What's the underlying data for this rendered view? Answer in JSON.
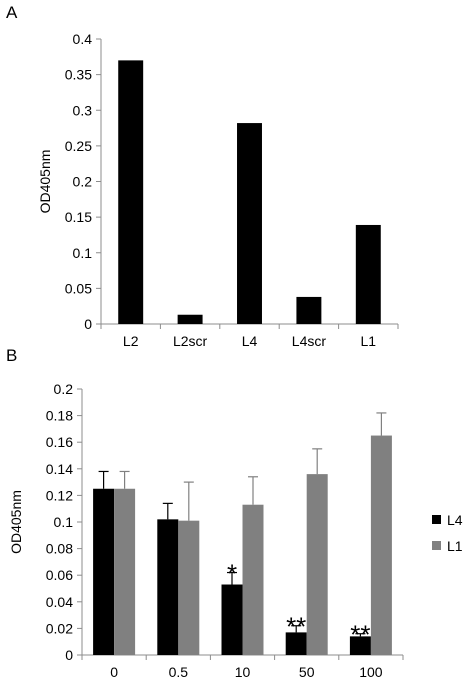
{
  "chart_data": [
    {
      "panel": "A",
      "type": "bar",
      "title": "",
      "xlabel": "",
      "ylabel": "OD405nm",
      "ylim": [
        0,
        0.4
      ],
      "yticks": [
        "0",
        "0.05",
        "0.1",
        "0.15",
        "0.2",
        "0.25",
        "0.3",
        "0.35",
        "0.4"
      ],
      "categories": [
        "L2",
        "L2scr",
        "L4",
        "L4scr",
        "L1"
      ],
      "values": [
        0.37,
        0.013,
        0.282,
        0.038,
        0.139
      ],
      "color": "#000000",
      "grid": false,
      "legend": "none"
    },
    {
      "panel": "B",
      "type": "bar",
      "title": "",
      "xlabel": "",
      "ylabel": "OD405nm",
      "ylim": [
        0,
        0.2
      ],
      "yticks": [
        "0",
        "0.02",
        "0.04",
        "0.06",
        "0.08",
        "0.1",
        "0.12",
        "0.14",
        "0.16",
        "0.18",
        "0.2"
      ],
      "categories": [
        "0",
        "0.5",
        "10",
        "50",
        "100"
      ],
      "series": [
        {
          "name": "L4",
          "color": "#000000",
          "values": [
            0.125,
            0.102,
            0.053,
            0.017,
            0.014
          ],
          "errors": [
            0.013,
            0.012,
            0.009,
            0.005,
            0.002
          ],
          "annotations": [
            "",
            "",
            "*",
            "**",
            "**"
          ]
        },
        {
          "name": "L1",
          "color": "#808080",
          "values": [
            0.125,
            0.101,
            0.113,
            0.136,
            0.165
          ],
          "errors": [
            0.013,
            0.029,
            0.021,
            0.019,
            0.017
          ],
          "annotations": [
            "",
            "",
            "",
            "",
            ""
          ]
        }
      ],
      "grid": false,
      "legend": "right"
    }
  ]
}
